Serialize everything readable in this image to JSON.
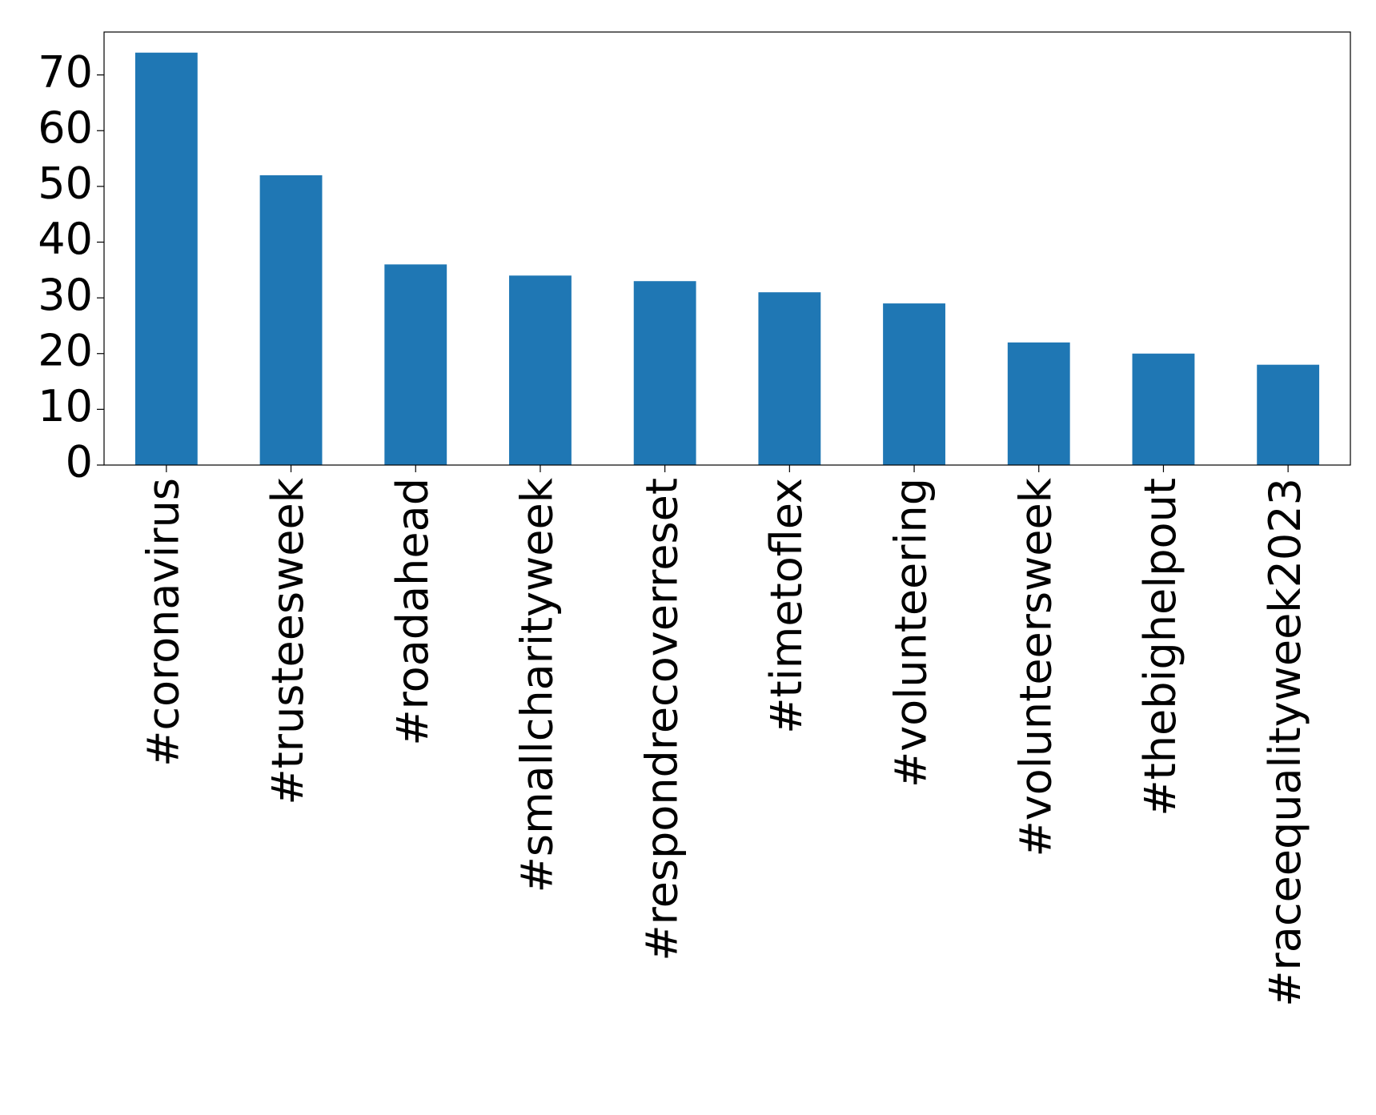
{
  "chart_data": {
    "type": "bar",
    "categories": [
      "#coronavirus",
      "#trusteesweek",
      "#roadahead",
      "#smallcharityweek",
      "#respondrecoverreset",
      "#timetoflex",
      "#volunteering",
      "#volunteersweek",
      "#thebighelpout",
      "#raceequalityweek2023"
    ],
    "values": [
      74,
      52,
      36,
      34,
      33,
      31,
      29,
      22,
      20,
      18
    ],
    "color": "#1f77b4",
    "ylim": [
      0,
      77.7
    ],
    "yticks": [
      0,
      10,
      20,
      30,
      40,
      50,
      60,
      70
    ],
    "grid": false
  }
}
